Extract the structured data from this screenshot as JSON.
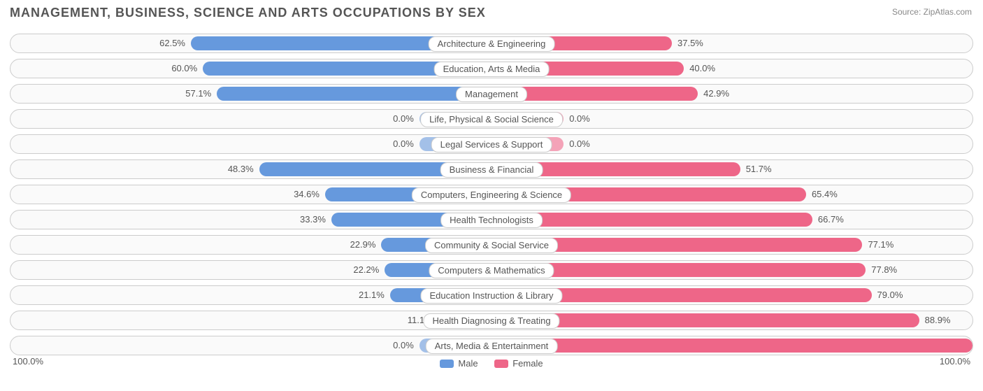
{
  "chart": {
    "title": "MANAGEMENT, BUSINESS, SCIENCE AND ARTS OCCUPATIONS BY SEX",
    "source_prefix": "Source: ",
    "source_name": "ZipAtlas.com",
    "male_color": "#6699dd",
    "female_color": "#ee6688",
    "male_color_light": "#a3c0e8",
    "female_color_light": "#f4a3b8",
    "background_color": "#ffffff",
    "row_bg": "#fafafa",
    "row_border": "#cccccc",
    "text_color": "#555555",
    "axis_left": "100.0%",
    "axis_right": "100.0%",
    "legend": {
      "male_label": "Male",
      "female_label": "Female"
    },
    "rows": [
      {
        "label": "Architecture & Engineering",
        "male": 62.5,
        "female": 37.5,
        "male_text": "62.5%",
        "female_text": "37.5%",
        "light": false
      },
      {
        "label": "Education, Arts & Media",
        "male": 60.0,
        "female": 40.0,
        "male_text": "60.0%",
        "female_text": "40.0%",
        "light": false
      },
      {
        "label": "Management",
        "male": 57.1,
        "female": 42.9,
        "male_text": "57.1%",
        "female_text": "42.9%",
        "light": false
      },
      {
        "label": "Life, Physical & Social Science",
        "male": 15.0,
        "female": 15.0,
        "male_text": "0.0%",
        "female_text": "0.0%",
        "light": true
      },
      {
        "label": "Legal Services & Support",
        "male": 15.0,
        "female": 15.0,
        "male_text": "0.0%",
        "female_text": "0.0%",
        "light": true
      },
      {
        "label": "Business & Financial",
        "male": 48.3,
        "female": 51.7,
        "male_text": "48.3%",
        "female_text": "51.7%",
        "light": false
      },
      {
        "label": "Computers, Engineering & Science",
        "male": 34.6,
        "female": 65.4,
        "male_text": "34.6%",
        "female_text": "65.4%",
        "light": false
      },
      {
        "label": "Health Technologists",
        "male": 33.3,
        "female": 66.7,
        "male_text": "33.3%",
        "female_text": "66.7%",
        "light": false
      },
      {
        "label": "Community & Social Service",
        "male": 22.9,
        "female": 77.1,
        "male_text": "22.9%",
        "female_text": "77.1%",
        "light": false
      },
      {
        "label": "Computers & Mathematics",
        "male": 22.2,
        "female": 77.8,
        "male_text": "22.2%",
        "female_text": "77.8%",
        "light": false
      },
      {
        "label": "Education Instruction & Library",
        "male": 21.1,
        "female": 79.0,
        "male_text": "21.1%",
        "female_text": "79.0%",
        "light": false
      },
      {
        "label": "Health Diagnosing & Treating",
        "male": 11.1,
        "female": 88.9,
        "male_text": "11.1%",
        "female_text": "88.9%",
        "light": false
      },
      {
        "label": "Arts, Media & Entertainment",
        "male": 15.0,
        "female": 100.0,
        "male_text": "0.0%",
        "female_text": "100.0%",
        "light_male": true,
        "light": false
      }
    ]
  }
}
